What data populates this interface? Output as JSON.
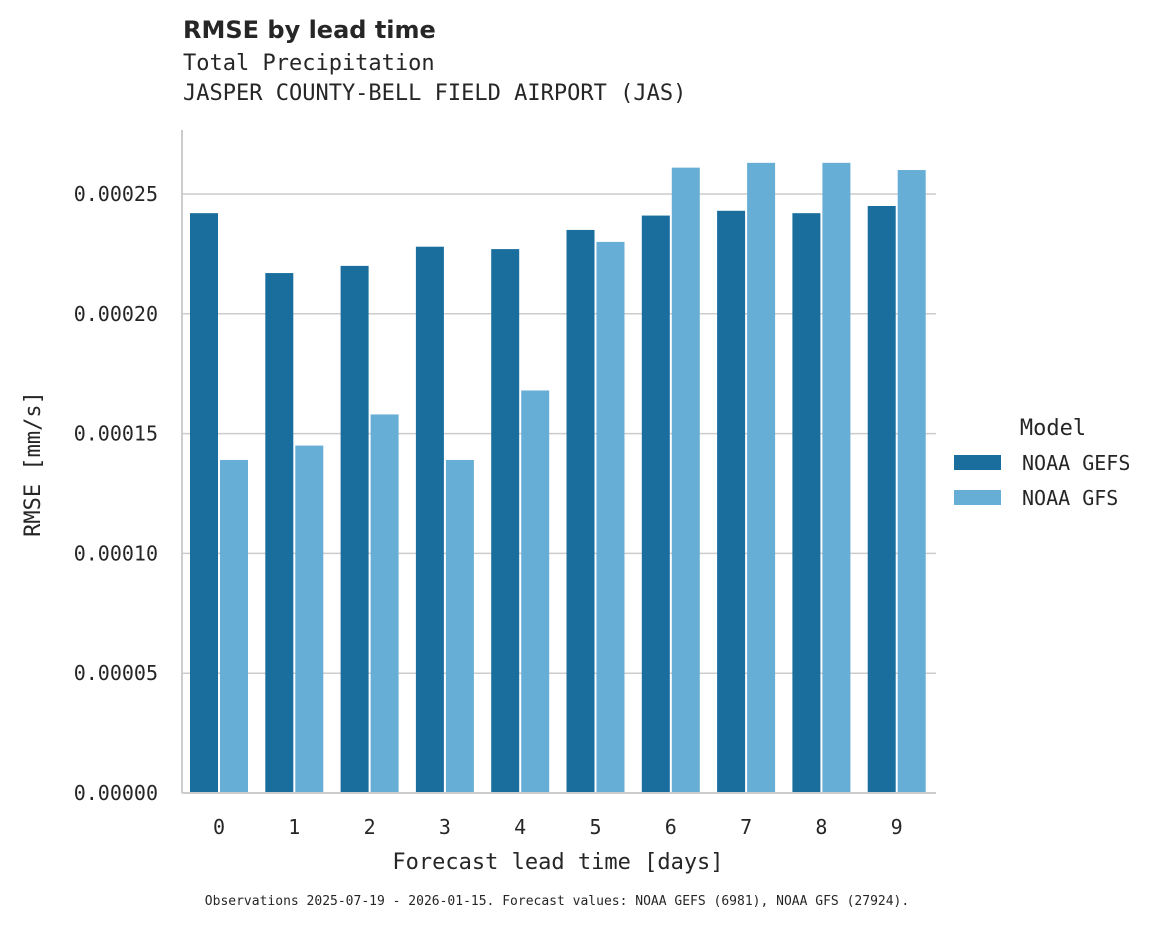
{
  "header": {
    "title": "RMSE by lead time",
    "subtitle_line1": "Total Precipitation",
    "subtitle_line2": "JASPER COUNTY-BELL FIELD AIRPORT (JAS)"
  },
  "axes": {
    "xlabel": "Forecast lead time [days]",
    "ylabel": "RMSE [mm/s]",
    "yticks": [
      "0.00000",
      "0.00005",
      "0.00010",
      "0.00015",
      "0.00020",
      "0.00025"
    ],
    "xticks": [
      "0",
      "1",
      "2",
      "3",
      "4",
      "5",
      "6",
      "7",
      "8",
      "9"
    ]
  },
  "legend": {
    "title": "Model",
    "items": [
      {
        "label": "NOAA GEFS",
        "color": "#1a6e9e"
      },
      {
        "label": "NOAA GFS",
        "color": "#67aed6"
      }
    ]
  },
  "footnote": "Observations 2025-07-19 - 2026-01-15. Forecast values: NOAA GEFS (6981), NOAA GFS (27924).",
  "chart_data": {
    "type": "bar",
    "title": "RMSE by lead time",
    "subtitle": "Total Precipitation — JASPER COUNTY-BELL FIELD AIRPORT (JAS)",
    "xlabel": "Forecast lead time [days]",
    "ylabel": "RMSE [mm/s]",
    "categories": [
      "0",
      "1",
      "2",
      "3",
      "4",
      "5",
      "6",
      "7",
      "8",
      "9"
    ],
    "series": [
      {
        "name": "NOAA GEFS",
        "color": "#1a6e9e",
        "values": [
          0.000242,
          0.000217,
          0.00022,
          0.000228,
          0.000227,
          0.000235,
          0.000241,
          0.000243,
          0.000242,
          0.000245
        ]
      },
      {
        "name": "NOAA GFS",
        "color": "#67aed6",
        "values": [
          0.000139,
          0.000145,
          0.000158,
          0.000139,
          0.000168,
          0.00023,
          0.000261,
          0.000263,
          0.000263,
          0.00026
        ]
      }
    ],
    "ylim": [
      0,
      0.000277
    ],
    "yticks": [
      0,
      5e-05,
      0.0001,
      0.00015,
      0.0002,
      0.00025
    ],
    "grid": "horizontal",
    "legend_position": "right"
  }
}
